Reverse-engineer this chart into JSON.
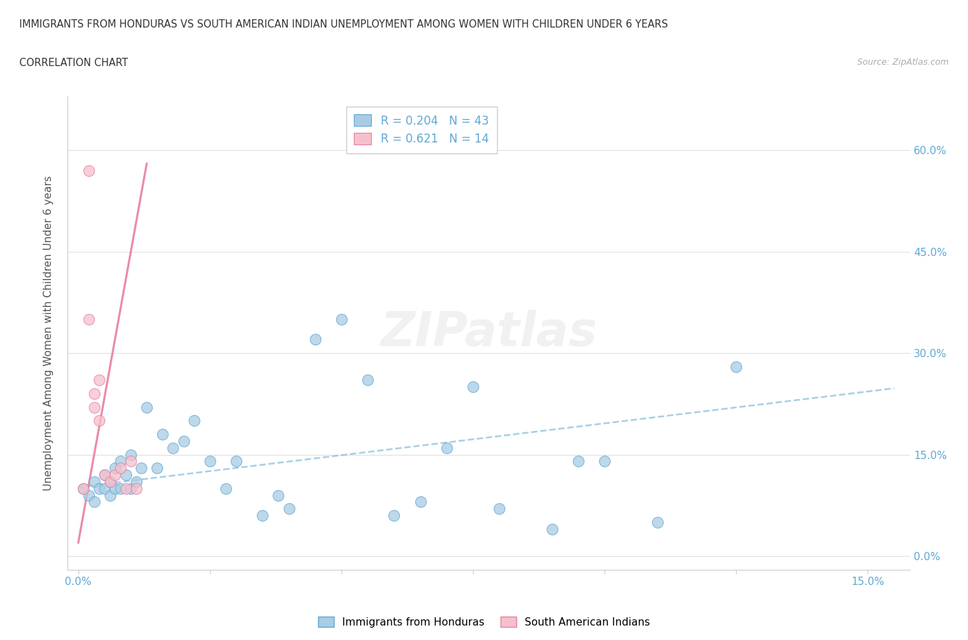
{
  "title": "IMMIGRANTS FROM HONDURAS VS SOUTH AMERICAN INDIAN UNEMPLOYMENT AMONG WOMEN WITH CHILDREN UNDER 6 YEARS",
  "subtitle": "CORRELATION CHART",
  "source": "Source: ZipAtlas.com",
  "ylabel": "Unemployment Among Women with Children Under 6 years",
  "xlim": [
    -0.002,
    0.158
  ],
  "ylim": [
    -0.02,
    0.68
  ],
  "xticks": [
    0.0,
    0.025,
    0.05,
    0.075,
    0.1,
    0.125,
    0.15
  ],
  "yticks": [
    0.0,
    0.15,
    0.3,
    0.45,
    0.6
  ],
  "ytick_labels": [
    "0.0%",
    "15.0%",
    "30.0%",
    "45.0%",
    "60.0%"
  ],
  "xtick_labels_show": [
    "0.0%",
    "",
    "",
    "",
    "",
    "",
    "15.0%"
  ],
  "legend_r1": "R = 0.204",
  "legend_n1": "N = 43",
  "legend_r2": "R = 0.621",
  "legend_n2": "N = 14",
  "color_blue": "#a8cce4",
  "color_pink": "#f5c0cc",
  "color_edge_blue": "#5fa8d3",
  "color_edge_pink": "#e87fa0",
  "color_line_blue": "#5fa8d3",
  "color_line_pink": "#e87fa0",
  "watermark": "ZIPatlas",
  "blue_scatter_x": [
    0.001,
    0.002,
    0.003,
    0.003,
    0.004,
    0.005,
    0.005,
    0.006,
    0.006,
    0.007,
    0.007,
    0.008,
    0.008,
    0.009,
    0.01,
    0.01,
    0.011,
    0.012,
    0.013,
    0.015,
    0.016,
    0.018,
    0.02,
    0.022,
    0.025,
    0.028,
    0.03,
    0.035,
    0.038,
    0.04,
    0.045,
    0.05,
    0.055,
    0.06,
    0.065,
    0.07,
    0.075,
    0.08,
    0.09,
    0.095,
    0.1,
    0.11,
    0.125
  ],
  "blue_scatter_y": [
    0.1,
    0.09,
    0.08,
    0.11,
    0.1,
    0.12,
    0.1,
    0.11,
    0.09,
    0.1,
    0.13,
    0.14,
    0.1,
    0.12,
    0.1,
    0.15,
    0.11,
    0.13,
    0.22,
    0.13,
    0.18,
    0.16,
    0.17,
    0.2,
    0.14,
    0.1,
    0.14,
    0.06,
    0.09,
    0.07,
    0.32,
    0.35,
    0.26,
    0.06,
    0.08,
    0.16,
    0.25,
    0.07,
    0.04,
    0.14,
    0.14,
    0.05,
    0.28
  ],
  "pink_scatter_x": [
    0.001,
    0.002,
    0.002,
    0.003,
    0.003,
    0.004,
    0.004,
    0.005,
    0.006,
    0.007,
    0.008,
    0.009,
    0.01,
    0.011
  ],
  "pink_scatter_y": [
    0.1,
    0.57,
    0.35,
    0.24,
    0.22,
    0.2,
    0.26,
    0.12,
    0.11,
    0.12,
    0.13,
    0.1,
    0.14,
    0.1
  ],
  "blue_trend_x": [
    0.0,
    0.155
  ],
  "blue_trend_y": [
    0.102,
    0.248
  ],
  "pink_trend_x": [
    0.0,
    0.013
  ],
  "pink_trend_y": [
    0.02,
    0.58
  ],
  "grid_color": "#e0e0e0",
  "spine_color": "#cccccc",
  "tick_label_color": "#5fa8d3",
  "title_color": "#333333",
  "ylabel_color": "#555555",
  "bg_color": "#ffffff"
}
